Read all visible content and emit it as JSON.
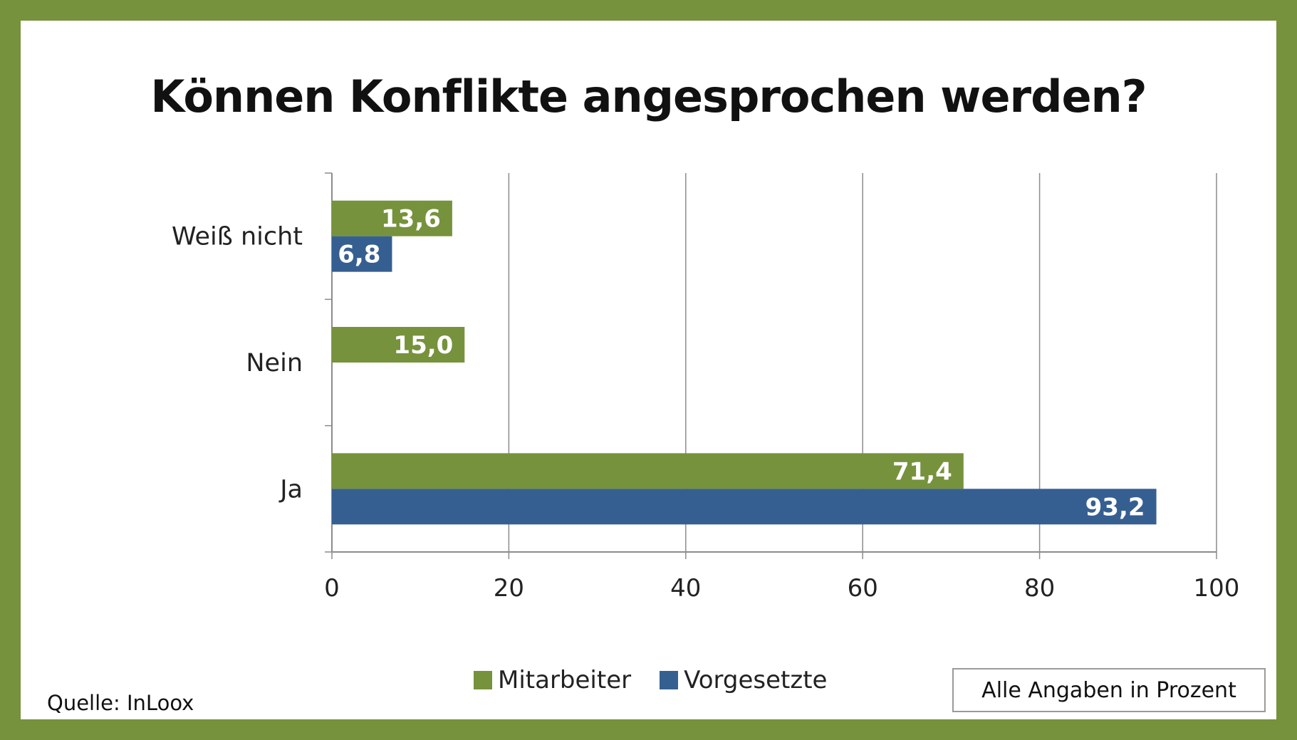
{
  "title": "Können Konflikte angesprochen werden?",
  "source": "Quelle: InLoox",
  "note": "Alle Angaben in Prozent",
  "colors": {
    "frame": "#76923c",
    "mitarbeiter": "#76923c",
    "vorgesetzte": "#365f91"
  },
  "chart_data": {
    "type": "bar",
    "orientation": "horizontal",
    "categories": [
      "Weiß nicht",
      "Nein",
      "Ja"
    ],
    "series": [
      {
        "name": "Mitarbeiter",
        "color": "#76923c",
        "values": [
          13.6,
          15.0,
          71.4
        ],
        "labels": [
          "13,6",
          "15,0",
          "71,4"
        ]
      },
      {
        "name": "Vorgesetzte",
        "color": "#365f91",
        "values": [
          6.8,
          null,
          93.2
        ],
        "labels": [
          "6,8",
          "",
          "93,2"
        ]
      }
    ],
    "xlim": [
      0,
      100
    ],
    "xticks": [
      0,
      20,
      40,
      60,
      80,
      100
    ],
    "grid": "vertical",
    "legend_position": "bottom",
    "xlabel": "",
    "ylabel": ""
  }
}
